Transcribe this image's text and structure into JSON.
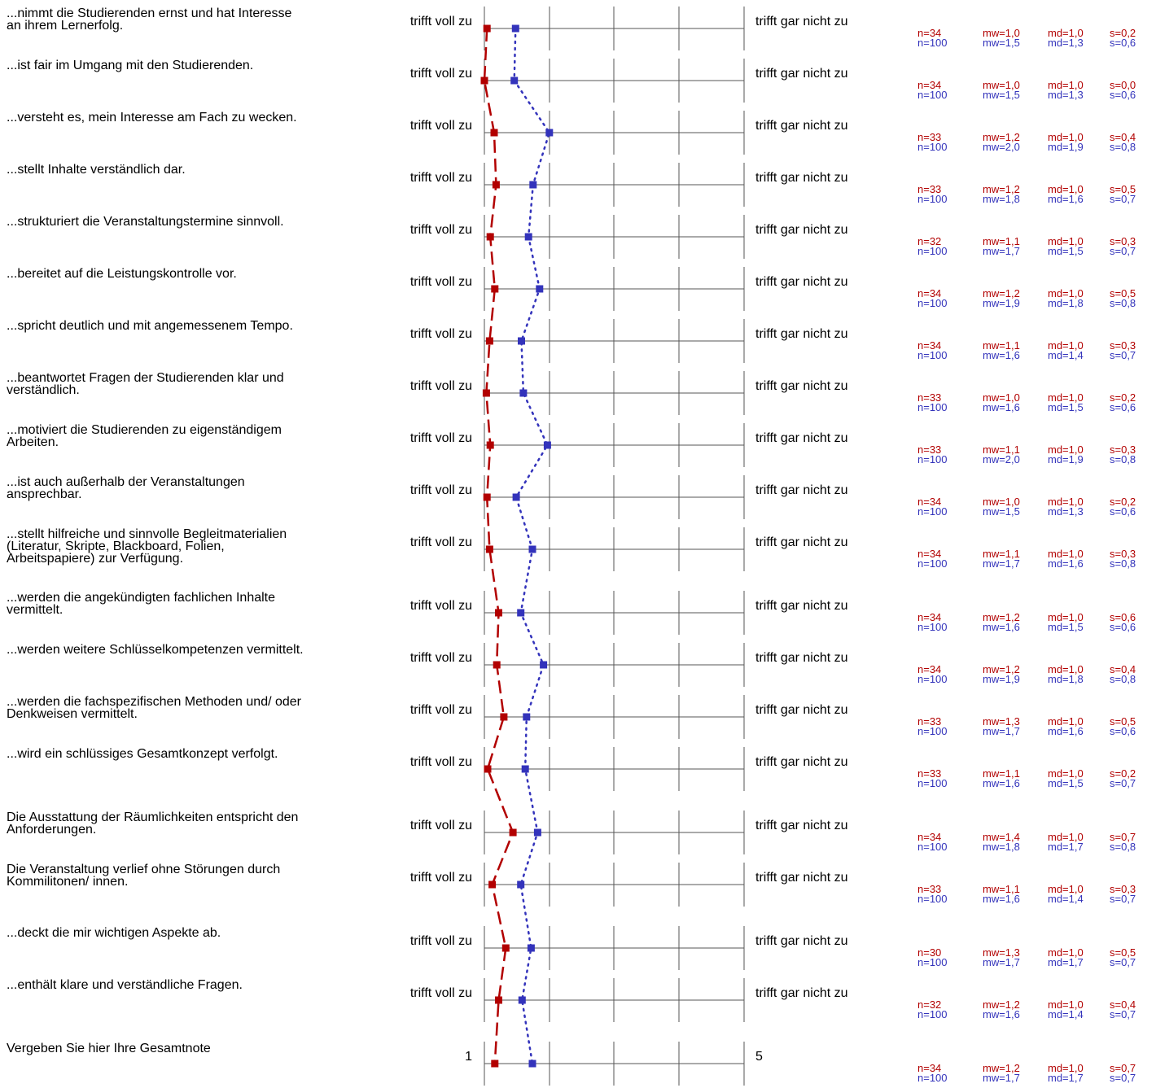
{
  "chart_data": {
    "type": "line",
    "scale": {
      "min": 1,
      "max": 5
    },
    "series": [
      {
        "color": "#b20000",
        "line_style": "dashed",
        "marker": "square"
      },
      {
        "color": "#3333bb",
        "line_style": "dotted",
        "marker": "square"
      }
    ],
    "items": [
      {
        "label": "...nimmt die Studierenden ernst und hat Interesse\nan ihrem Lernerfolg.",
        "left": "trifft voll zu",
        "right": "trifft gar nicht zu",
        "stats": [
          {
            "n": "n=34",
            "mw": "mw=1,0",
            "md": "md=1,0",
            "s": "s=0,2"
          },
          {
            "n": "n=100",
            "mw": "mw=1,5",
            "md": "md=1,3",
            "s": "s=0,6"
          }
        ],
        "values": [
          1.04,
          1.48
        ]
      },
      {
        "label": "...ist fair im Umgang mit den Studierenden.",
        "left": "trifft voll zu",
        "right": "trifft gar nicht zu",
        "stats": [
          {
            "n": "n=34",
            "mw": "mw=1,0",
            "md": "md=1,0",
            "s": "s=0,0"
          },
          {
            "n": "n=100",
            "mw": "mw=1,5",
            "md": "md=1,3",
            "s": "s=0,6"
          }
        ],
        "values": [
          1.0,
          1.46
        ]
      },
      {
        "label": "...versteht es, mein Interesse am Fach zu wecken.",
        "left": "trifft voll zu",
        "right": "trifft gar nicht zu",
        "stats": [
          {
            "n": "n=33",
            "mw": "mw=1,2",
            "md": "md=1,0",
            "s": "s=0,4"
          },
          {
            "n": "n=100",
            "mw": "mw=2,0",
            "md": "md=1,9",
            "s": "s=0,8"
          }
        ],
        "values": [
          1.15,
          2.0
        ]
      },
      {
        "label": "...stellt Inhalte verständlich dar.",
        "left": "trifft voll zu",
        "right": "trifft gar nicht zu",
        "stats": [
          {
            "n": "n=33",
            "mw": "mw=1,2",
            "md": "md=1,0",
            "s": "s=0,5"
          },
          {
            "n": "n=100",
            "mw": "mw=1,8",
            "md": "md=1,6",
            "s": "s=0,7"
          }
        ],
        "values": [
          1.18,
          1.75
        ]
      },
      {
        "label": "...strukturiert die Veranstaltungstermine sinnvoll.",
        "left": "trifft voll zu",
        "right": "trifft gar nicht zu",
        "stats": [
          {
            "n": "n=32",
            "mw": "mw=1,1",
            "md": "md=1,0",
            "s": "s=0,3"
          },
          {
            "n": "n=100",
            "mw": "mw=1,7",
            "md": "md=1,5",
            "s": "s=0,7"
          }
        ],
        "values": [
          1.09,
          1.68
        ]
      },
      {
        "label": "...bereitet auf die Leistungskontrolle vor.",
        "left": "trifft voll zu",
        "right": "trifft gar nicht zu",
        "stats": [
          {
            "n": "n=34",
            "mw": "mw=1,2",
            "md": "md=1,0",
            "s": "s=0,5"
          },
          {
            "n": "n=100",
            "mw": "mw=1,9",
            "md": "md=1,8",
            "s": "s=0,8"
          }
        ],
        "values": [
          1.16,
          1.85
        ]
      },
      {
        "label": "...spricht deutlich und mit angemessenem Tempo.",
        "left": "trifft voll zu",
        "right": "trifft gar nicht zu",
        "stats": [
          {
            "n": "n=34",
            "mw": "mw=1,1",
            "md": "md=1,0",
            "s": "s=0,3"
          },
          {
            "n": "n=100",
            "mw": "mw=1,6",
            "md": "md=1,4",
            "s": "s=0,7"
          }
        ],
        "values": [
          1.08,
          1.57
        ]
      },
      {
        "label": "...beantwortet Fragen der Studierenden klar und\nverständlich.",
        "left": "trifft voll zu",
        "right": "trifft gar nicht zu",
        "stats": [
          {
            "n": "n=33",
            "mw": "mw=1,0",
            "md": "md=1,0",
            "s": "s=0,2"
          },
          {
            "n": "n=100",
            "mw": "mw=1,6",
            "md": "md=1,5",
            "s": "s=0,6"
          }
        ],
        "values": [
          1.03,
          1.6
        ]
      },
      {
        "label": "...motiviert die Studierenden zu eigenständigem\nArbeiten.",
        "left": "trifft voll zu",
        "right": "trifft gar nicht zu",
        "stats": [
          {
            "n": "n=33",
            "mw": "mw=1,1",
            "md": "md=1,0",
            "s": "s=0,3"
          },
          {
            "n": "n=100",
            "mw": "mw=2,0",
            "md": "md=1,9",
            "s": "s=0,8"
          }
        ],
        "values": [
          1.09,
          1.97
        ]
      },
      {
        "label": "...ist auch außerhalb der Veranstaltungen\nansprechbar.",
        "left": "trifft voll zu",
        "right": "trifft gar nicht zu",
        "stats": [
          {
            "n": "n=34",
            "mw": "mw=1,0",
            "md": "md=1,0",
            "s": "s=0,2"
          },
          {
            "n": "n=100",
            "mw": "mw=1,5",
            "md": "md=1,3",
            "s": "s=0,6"
          }
        ],
        "values": [
          1.04,
          1.49
        ]
      },
      {
        "label": "...stellt hilfreiche und sinnvolle Begleitmaterialien\n(Literatur, Skripte, Blackboard, Folien,\nArbeitspapiere) zur Verfügung.",
        "left": "trifft voll zu",
        "right": "trifft gar nicht zu",
        "stats": [
          {
            "n": "n=34",
            "mw": "mw=1,1",
            "md": "md=1,0",
            "s": "s=0,3"
          },
          {
            "n": "n=100",
            "mw": "mw=1,7",
            "md": "md=1,6",
            "s": "s=0,8"
          }
        ],
        "values": [
          1.08,
          1.74
        ]
      },
      {
        "label": "...werden die angekündigten fachlichen Inhalte\nvermittelt.",
        "left": "trifft voll zu",
        "right": "trifft gar nicht zu",
        "stats": [
          {
            "n": "n=34",
            "mw": "mw=1,2",
            "md": "md=1,0",
            "s": "s=0,6"
          },
          {
            "n": "n=100",
            "mw": "mw=1,6",
            "md": "md=1,5",
            "s": "s=0,6"
          }
        ],
        "values": [
          1.22,
          1.56
        ]
      },
      {
        "label": "...werden weitere Schlüsselkompetenzen vermittelt.",
        "left": "trifft voll zu",
        "right": "trifft gar nicht zu",
        "stats": [
          {
            "n": "n=34",
            "mw": "mw=1,2",
            "md": "md=1,0",
            "s": "s=0,4"
          },
          {
            "n": "n=100",
            "mw": "mw=1,9",
            "md": "md=1,8",
            "s": "s=0,8"
          }
        ],
        "values": [
          1.19,
          1.91
        ]
      },
      {
        "label": "...werden die fachspezifischen Methoden und/ oder\nDenkweisen vermittelt.",
        "left": "trifft voll zu",
        "right": "trifft gar nicht zu",
        "stats": [
          {
            "n": "n=33",
            "mw": "mw=1,3",
            "md": "md=1,0",
            "s": "s=0,5"
          },
          {
            "n": "n=100",
            "mw": "mw=1,7",
            "md": "md=1,6",
            "s": "s=0,6"
          }
        ],
        "values": [
          1.3,
          1.65
        ]
      },
      {
        "label": "...wird ein schlüssiges Gesamtkonzept verfolgt.",
        "left": "trifft voll zu",
        "right": "trifft gar nicht zu",
        "stats": [
          {
            "n": "n=33",
            "mw": "mw=1,1",
            "md": "md=1,0",
            "s": "s=0,2"
          },
          {
            "n": "n=100",
            "mw": "mw=1,6",
            "md": "md=1,5",
            "s": "s=0,7"
          }
        ],
        "values": [
          1.05,
          1.63
        ]
      },
      {
        "label": "Die Ausstattung der Räumlichkeiten entspricht den\nAnforderungen.",
        "left": "trifft voll zu",
        "right": "trifft gar nicht zu",
        "stats": [
          {
            "n": "n=34",
            "mw": "mw=1,4",
            "md": "md=1,0",
            "s": "s=0,7"
          },
          {
            "n": "n=100",
            "mw": "mw=1,8",
            "md": "md=1,7",
            "s": "s=0,8"
          }
        ],
        "values": [
          1.44,
          1.82
        ]
      },
      {
        "label": "Die Veranstaltung verlief ohne Störungen durch\nKommilitonen/ innen.",
        "left": "trifft voll zu",
        "right": "trifft gar nicht zu",
        "stats": [
          {
            "n": "n=33",
            "mw": "mw=1,1",
            "md": "md=1,0",
            "s": "s=0,3"
          },
          {
            "n": "n=100",
            "mw": "mw=1,6",
            "md": "md=1,4",
            "s": "s=0,7"
          }
        ],
        "values": [
          1.12,
          1.56
        ]
      },
      {
        "label": "...deckt die mir wichtigen Aspekte ab.",
        "left": "trifft voll zu",
        "right": "trifft gar nicht zu",
        "stats": [
          {
            "n": "n=30",
            "mw": "mw=1,3",
            "md": "md=1,0",
            "s": "s=0,5"
          },
          {
            "n": "n=100",
            "mw": "mw=1,7",
            "md": "md=1,7",
            "s": "s=0,7"
          }
        ],
        "values": [
          1.33,
          1.72
        ]
      },
      {
        "label": "...enthält klare und verständliche Fragen.",
        "left": "trifft voll zu",
        "right": "trifft gar nicht zu",
        "stats": [
          {
            "n": "n=32",
            "mw": "mw=1,2",
            "md": "md=1,0",
            "s": "s=0,4"
          },
          {
            "n": "n=100",
            "mw": "mw=1,6",
            "md": "md=1,4",
            "s": "s=0,7"
          }
        ],
        "values": [
          1.22,
          1.58
        ]
      },
      {
        "label": "Vergeben Sie hier Ihre Gesamtnote",
        "left": "1",
        "right": "5",
        "stats": [
          {
            "n": "n=34",
            "mw": "mw=1,2",
            "md": "md=1,0",
            "s": "s=0,7"
          },
          {
            "n": "n=100",
            "mw": "mw=1,7",
            "md": "md=1,7",
            "s": "s=0,7"
          }
        ],
        "values": [
          1.16,
          1.74
        ]
      }
    ]
  }
}
